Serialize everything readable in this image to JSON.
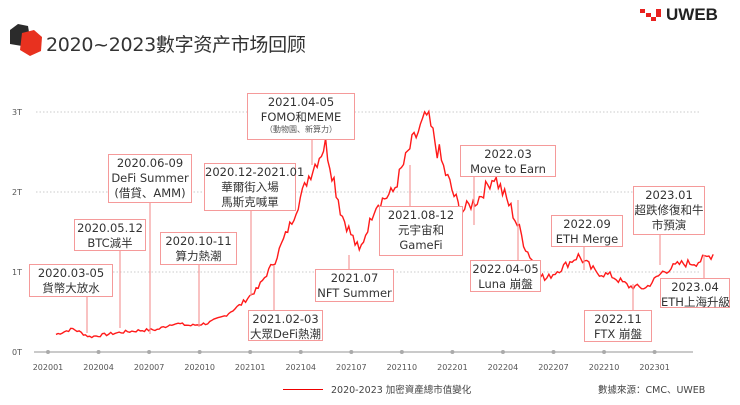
{
  "header": {
    "title": "2020~2023數字资产市场回顾",
    "logo_text": "UWEB"
  },
  "colors": {
    "line": "#ff1a1a",
    "annotation_border": "#f59a9a",
    "grid": "#bbbbbb",
    "axis": "#aaaaaa",
    "logo_red": "#e8211f"
  },
  "chart_data": {
    "type": "line",
    "title": "",
    "xlabel": "",
    "ylabel": "",
    "ylim": [
      0,
      3
    ],
    "y_ticks": [
      "0T",
      "1T",
      "2T",
      "3T"
    ],
    "x_ticks": [
      "202001",
      "202004",
      "202007",
      "202010",
      "202101",
      "202104",
      "202107",
      "202110",
      "202201",
      "202204",
      "202207",
      "202210",
      "202301"
    ],
    "grid": "horizontal dotted",
    "legend_placement": "bottom",
    "series": [
      {
        "name": "2020-2023 加密資產總市值變化",
        "unit": "T",
        "x": [
          "2020-01",
          "2020-02",
          "2020-03",
          "2020-04",
          "2020-05",
          "2020-06",
          "2020-07",
          "2020-08",
          "2020-09",
          "2020-10",
          "2020-11",
          "2020-12",
          "2021-01",
          "2021-02",
          "2021-03",
          "2021-04",
          "2021-05",
          "2021-06",
          "2021-07",
          "2021-08",
          "2021-09",
          "2021-10",
          "2021-11",
          "2021-12",
          "2022-01",
          "2022-02",
          "2022-03",
          "2022-04",
          "2022-05",
          "2022-06",
          "2022-07",
          "2022-08",
          "2022-09",
          "2022-10",
          "2022-11",
          "2022-12",
          "2023-01",
          "2023-02",
          "2023-03",
          "2023-04"
        ],
        "values": [
          0.22,
          0.29,
          0.19,
          0.22,
          0.25,
          0.27,
          0.28,
          0.36,
          0.33,
          0.36,
          0.45,
          0.6,
          0.8,
          1.15,
          1.65,
          2.2,
          2.6,
          1.7,
          1.25,
          1.85,
          2.0,
          2.55,
          2.95,
          2.3,
          1.75,
          1.9,
          2.2,
          1.8,
          1.25,
          0.9,
          1.05,
          1.2,
          1.0,
          0.95,
          0.82,
          0.8,
          1.0,
          1.1,
          1.12,
          1.22
        ]
      }
    ],
    "annotations": [
      {
        "lines": [
          "2020.03-05",
          "貨幣大放水"
        ]
      },
      {
        "lines": [
          "2020.05.12",
          "BTC減半"
        ]
      },
      {
        "lines": [
          "2020.06-09",
          "DeFi Summer",
          "(借貸、AMM)"
        ]
      },
      {
        "lines": [
          "2020.10-11",
          "算力熱潮"
        ]
      },
      {
        "lines": [
          "2020.12-2021.01",
          "華爾街入場",
          "馬斯克喊單"
        ]
      },
      {
        "lines": [
          "2021.02-03",
          "大眾DeFi熱潮"
        ]
      },
      {
        "lines": [
          "2021.04-05",
          "FOMO和MEME"
        ],
        "note": "（動物園、新算力）"
      },
      {
        "lines": [
          "2021.07",
          "NFT Summer"
        ]
      },
      {
        "lines": [
          "2021.08-12",
          "元宇宙和",
          "GameFi"
        ]
      },
      {
        "lines": [
          "2022.03",
          "Move to Earn"
        ]
      },
      {
        "lines": [
          "2022.04-05",
          "Luna 崩盤"
        ]
      },
      {
        "lines": [
          "2022.09",
          "ETH Merge"
        ]
      },
      {
        "lines": [
          "2022.11",
          "FTX 崩盤"
        ]
      },
      {
        "lines": [
          "2023.01",
          "超跌修復和牛",
          "市預演"
        ]
      },
      {
        "lines": [
          "2023.04",
          "ETH上海升級"
        ]
      }
    ]
  },
  "footer": {
    "legend_label": "2020-2023 加密資產總市值變化",
    "source": "數據來源：CMC、UWEB"
  }
}
